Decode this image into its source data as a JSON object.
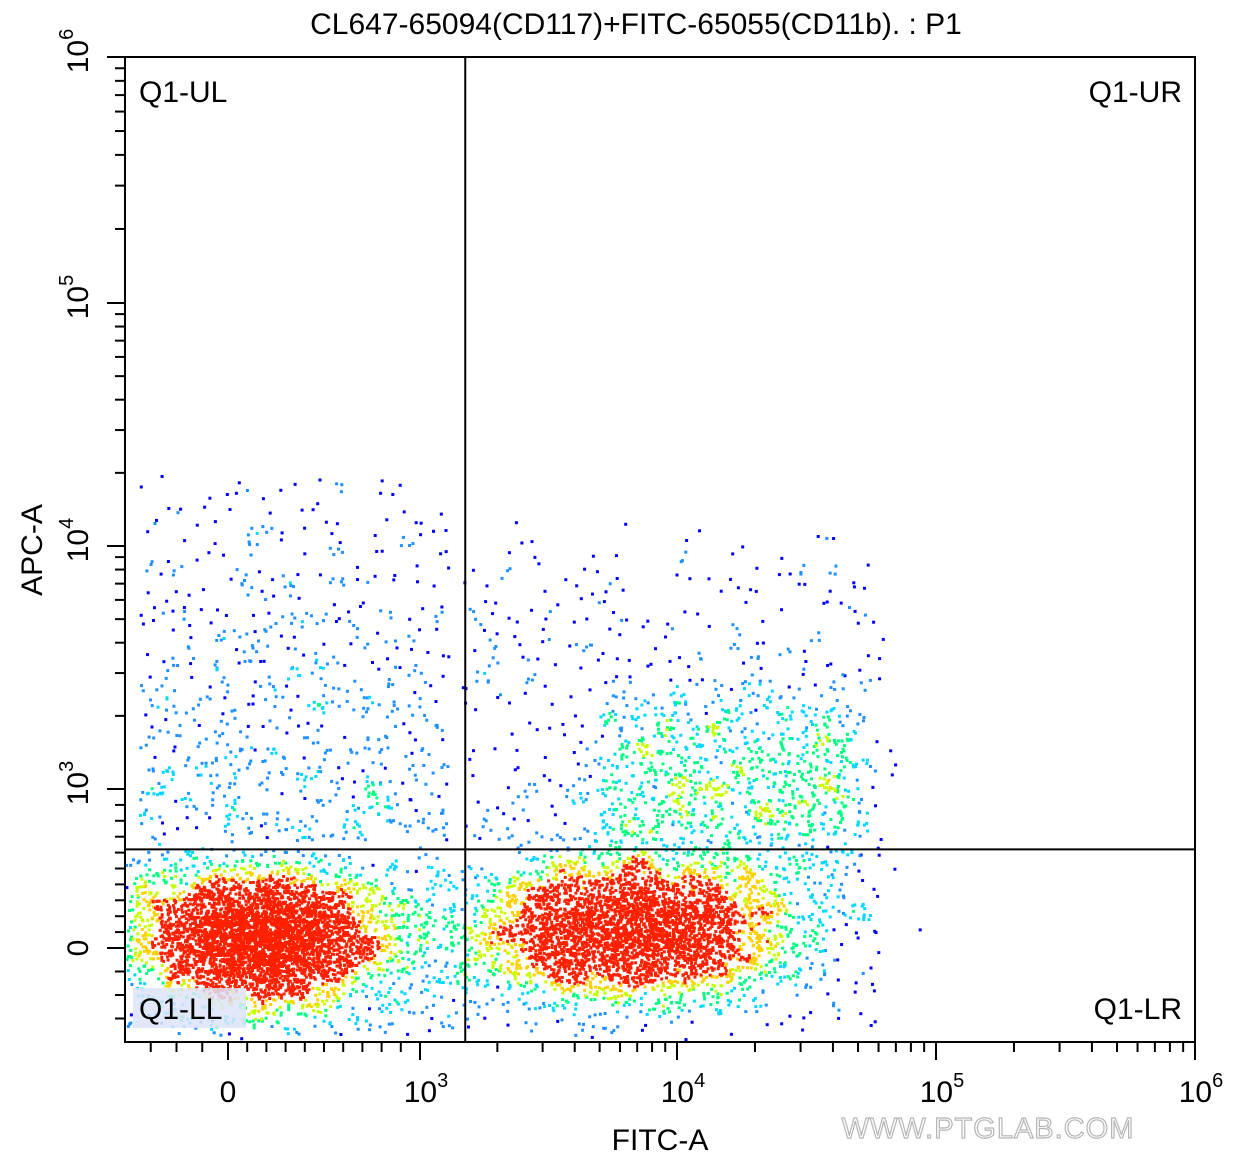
{
  "chart_data": {
    "type": "scatter",
    "title": "CL647-65094(CD117)+FITC-65055(CD11b). : P1",
    "xlabel": "FITC-A",
    "ylabel": "APC-A",
    "x_scale": "biexponential",
    "y_scale": "biexponential",
    "xlim": [
      -400,
      1000000
    ],
    "ylim": [
      -400,
      1000000
    ],
    "x_ticks": [
      {
        "value": 0,
        "base": "0",
        "exp": ""
      },
      {
        "value": 1000,
        "base": "10",
        "exp": "3"
      },
      {
        "value": 10000,
        "base": "10",
        "exp": "4"
      },
      {
        "value": 100000,
        "base": "10",
        "exp": "5"
      },
      {
        "value": 1000000,
        "base": "10",
        "exp": "6"
      }
    ],
    "y_ticks": [
      {
        "value": 0,
        "base": "0",
        "exp": ""
      },
      {
        "value": 1000,
        "base": "10",
        "exp": "3"
      },
      {
        "value": 10000,
        "base": "10",
        "exp": "4"
      },
      {
        "value": 100000,
        "base": "10",
        "exp": "5"
      },
      {
        "value": 1000000,
        "base": "10",
        "exp": "6"
      }
    ],
    "quadrant_gate": {
      "x": 1500,
      "y": 620
    },
    "quadrants": [
      {
        "name": "Q1-UL"
      },
      {
        "name": "Q1-UR"
      },
      {
        "name": "Q1-LL"
      },
      {
        "name": "Q1-LR"
      }
    ],
    "populations": [
      {
        "name": "FITC-negative cluster",
        "center_x": 180,
        "center_y": 60
      },
      {
        "name": "FITC-positive cluster",
        "center_x": 6500,
        "center_y": 120
      }
    ],
    "grid": false,
    "density_colors": [
      "#0000ff",
      "#1e90ff",
      "#00d8ff",
      "#00ff80",
      "#c8ff00",
      "#ffd000",
      "#ff2000"
    ]
  },
  "watermark": "WWW.PTGLAB.COM"
}
